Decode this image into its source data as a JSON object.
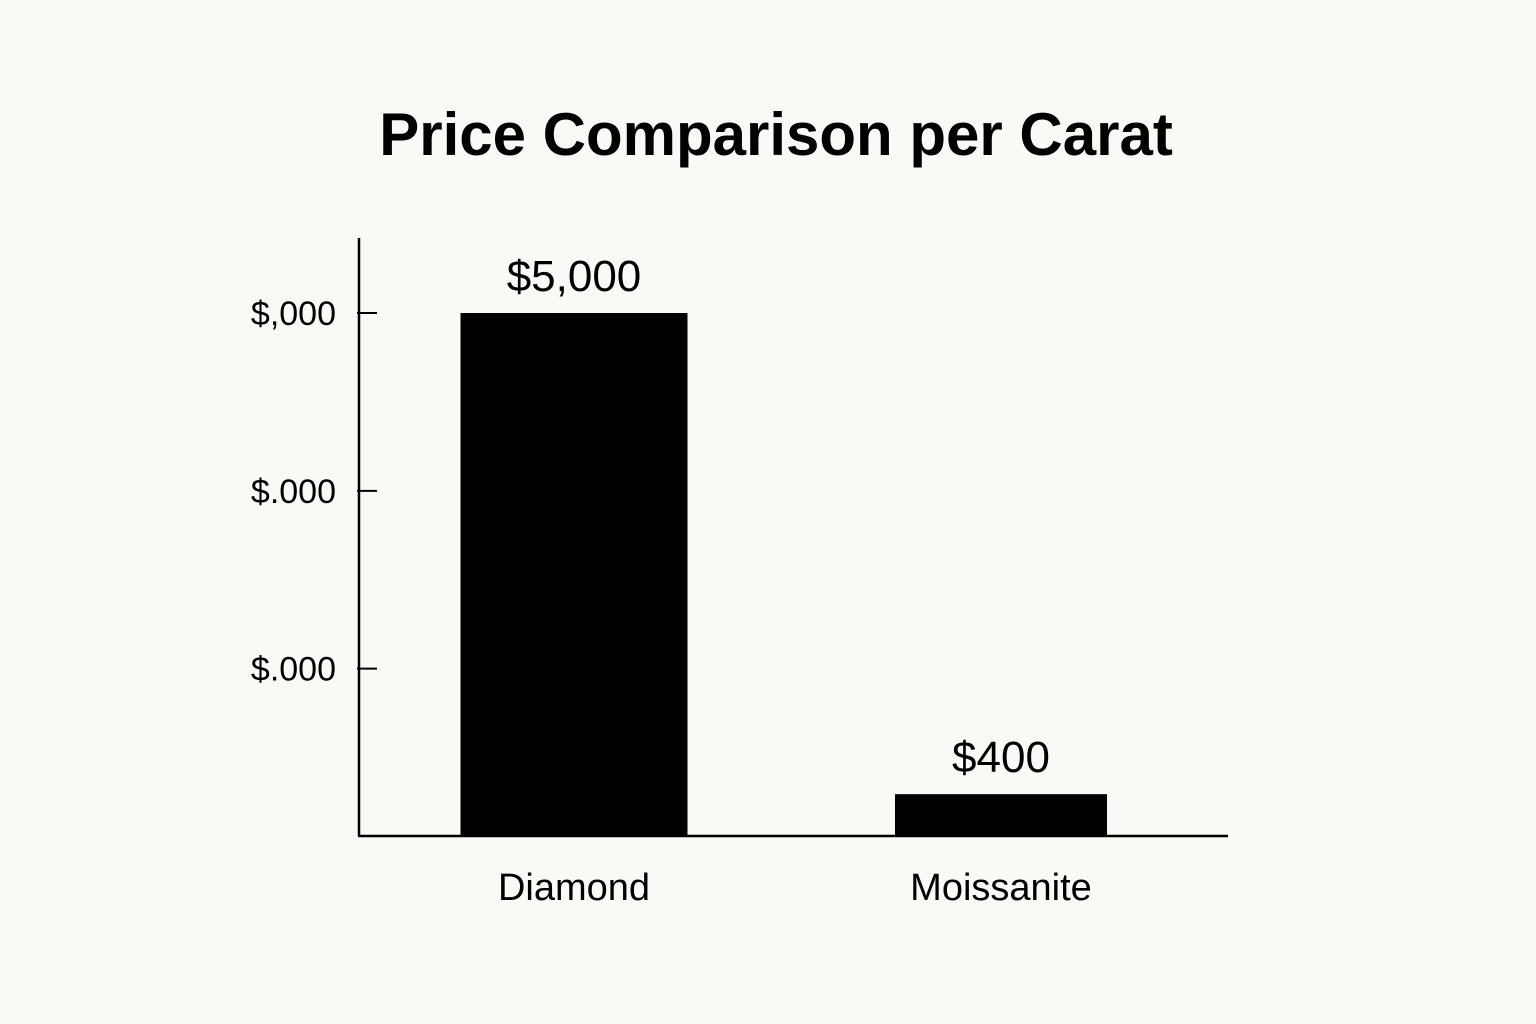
{
  "chart_data": {
    "type": "bar",
    "title": "Price Comparison per Carat",
    "categories": [
      "Diamond",
      "Moissanite"
    ],
    "values": [
      5000,
      400
    ],
    "data_labels": [
      "$5,000",
      "$400"
    ],
    "y_ticks": [
      {
        "value": 5000,
        "label": "$,000"
      },
      {
        "value": 3300,
        "label": "$.000"
      },
      {
        "value": 1600,
        "label": "$.000"
      }
    ],
    "xlabel": "",
    "ylabel": "",
    "ylim": [
      0,
      5700
    ],
    "grid": false,
    "bar_color": "#000000",
    "axis_color": "#000000",
    "background_color": "#faf9f5"
  }
}
